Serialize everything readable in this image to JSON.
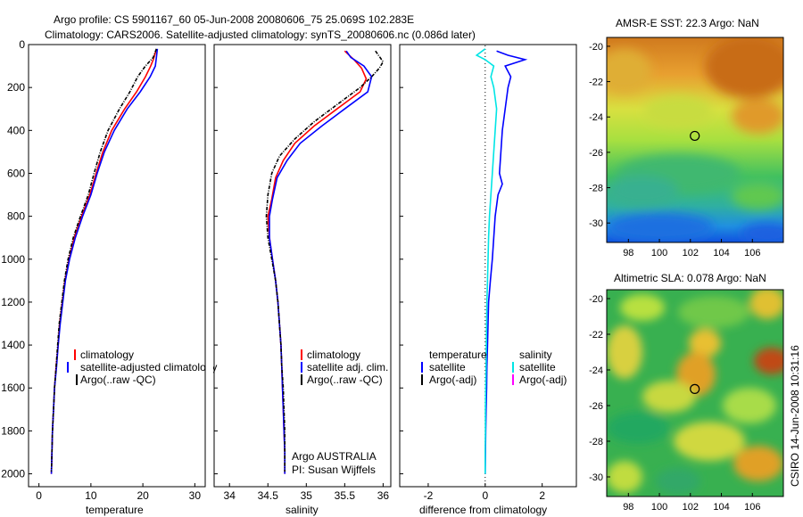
{
  "title_line1": "Argo profile: CS 5901167_60 05-Jun-2008 20080606_75 25.069S 102.283E",
  "title_line2": "Climatology: CARS2006. Satellite-adjusted climatology: synTS_20080606.nc (0.086d later)",
  "side_label": "CSIRO 14-Jun-2008 10:31:16",
  "colors": {
    "climatology": "#ff0000",
    "satellite": "#0000ff",
    "argo": "#000000",
    "satellite_salinity": "#00e5e5",
    "argo_adj_salinity": "#ff00ff"
  },
  "chart_data": [
    {
      "type": "line",
      "panel": "temperature",
      "xlabel": "temperature",
      "ylabel": "",
      "xlim": [
        -2,
        32
      ],
      "ylim": [
        2060,
        0
      ],
      "y_inverted": true,
      "xticks": [
        "0",
        "10",
        "20",
        "30"
      ],
      "yticks": [
        "0",
        "200",
        "400",
        "600",
        "800",
        "1000",
        "1200",
        "1400",
        "1600",
        "1800",
        "2000"
      ],
      "legend": [
        "climatology",
        "satellite-adjusted climatology",
        "Argo(..raw -QC)"
      ],
      "series": [
        {
          "name": "climatology",
          "color": "#ff0000",
          "points": [
            [
              22.5,
              30
            ],
            [
              22.0,
              70
            ],
            [
              21.5,
              100
            ],
            [
              20.5,
              150
            ],
            [
              18.8,
              220
            ],
            [
              16.5,
              300
            ],
            [
              14.0,
              400
            ],
            [
              12.3,
              500
            ],
            [
              11.0,
              600
            ],
            [
              9.8,
              700
            ],
            [
              8.2,
              800
            ],
            [
              6.8,
              900
            ],
            [
              5.8,
              1000
            ],
            [
              5.0,
              1100
            ],
            [
              4.5,
              1200
            ],
            [
              4.0,
              1300
            ],
            [
              3.7,
              1400
            ],
            [
              3.3,
              1500
            ],
            [
              3.0,
              1600
            ],
            [
              2.8,
              1700
            ],
            [
              2.6,
              1800
            ],
            [
              2.5,
              1900
            ],
            [
              2.4,
              2000
            ]
          ]
        },
        {
          "name": "satellite-adjusted climatology",
          "color": "#0000ff",
          "points": [
            [
              22.8,
              20
            ],
            [
              22.6,
              60
            ],
            [
              22.4,
              100
            ],
            [
              21.4,
              150
            ],
            [
              19.5,
              220
            ],
            [
              17.0,
              300
            ],
            [
              14.5,
              400
            ],
            [
              12.6,
              500
            ],
            [
              11.2,
              600
            ],
            [
              10.0,
              700
            ],
            [
              8.4,
              800
            ],
            [
              7.0,
              900
            ],
            [
              5.9,
              1000
            ],
            [
              5.1,
              1100
            ],
            [
              4.6,
              1200
            ],
            [
              4.1,
              1300
            ],
            [
              3.7,
              1400
            ],
            [
              3.4,
              1500
            ],
            [
              3.0,
              1600
            ],
            [
              2.8,
              1700
            ],
            [
              2.6,
              1800
            ],
            [
              2.5,
              1900
            ],
            [
              2.4,
              2000
            ]
          ]
        },
        {
          "name": "Argo(..raw -QC)",
          "color": "#000000",
          "points": [
            [
              22.6,
              20
            ],
            [
              22.0,
              60
            ],
            [
              20.5,
              100
            ],
            [
              19.0,
              150
            ],
            [
              17.5,
              220
            ],
            [
              15.5,
              300
            ],
            [
              13.3,
              400
            ],
            [
              11.8,
              500
            ],
            [
              10.6,
              600
            ],
            [
              9.5,
              700
            ],
            [
              8.0,
              800
            ],
            [
              6.6,
              900
            ],
            [
              5.6,
              1000
            ],
            [
              4.9,
              1100
            ],
            [
              4.4,
              1200
            ],
            [
              3.9,
              1300
            ],
            [
              3.6,
              1400
            ],
            [
              3.3,
              1500
            ],
            [
              3.0,
              1600
            ],
            [
              2.8,
              1700
            ],
            [
              2.6,
              1800
            ],
            [
              2.5,
              1900
            ],
            [
              2.4,
              1990
            ]
          ]
        }
      ]
    },
    {
      "type": "line",
      "panel": "salinity",
      "xlabel": "salinity",
      "ylabel": "",
      "xlim": [
        33.8,
        36.1
      ],
      "ylim": [
        2060,
        0
      ],
      "y_inverted": true,
      "xticks": [
        "34",
        "34.5",
        "35",
        "35.5",
        "36"
      ],
      "legend": [
        "climatology",
        "satellite adj. clim.",
        "Argo(..raw -QC)"
      ],
      "annotations": [
        "Argo AUSTRALIA",
        "PI: Susan Wijffels"
      ],
      "series": [
        {
          "name": "climatology",
          "color": "#ff0000",
          "points": [
            [
              35.5,
              30
            ],
            [
              35.62,
              70
            ],
            [
              35.72,
              110
            ],
            [
              35.78,
              160
            ],
            [
              35.7,
              220
            ],
            [
              35.4,
              300
            ],
            [
              35.1,
              380
            ],
            [
              34.85,
              460
            ],
            [
              34.7,
              540
            ],
            [
              34.6,
              620
            ],
            [
              34.55,
              720
            ],
            [
              34.5,
              800
            ],
            [
              34.52,
              900
            ],
            [
              34.56,
              1000
            ],
            [
              34.6,
              1100
            ],
            [
              34.63,
              1200
            ],
            [
              34.65,
              1300
            ],
            [
              34.67,
              1400
            ],
            [
              34.68,
              1500
            ],
            [
              34.69,
              1600
            ],
            [
              34.7,
              1700
            ],
            [
              34.71,
              1800
            ],
            [
              34.72,
              1900
            ],
            [
              34.72,
              2000
            ]
          ]
        },
        {
          "name": "satellite adj. clim.",
          "color": "#0000ff",
          "points": [
            [
              35.52,
              30
            ],
            [
              35.58,
              60
            ],
            [
              35.75,
              100
            ],
            [
              35.85,
              150
            ],
            [
              35.8,
              220
            ],
            [
              35.5,
              300
            ],
            [
              35.2,
              380
            ],
            [
              34.92,
              460
            ],
            [
              34.75,
              540
            ],
            [
              34.62,
              620
            ],
            [
              34.56,
              720
            ],
            [
              34.52,
              800
            ],
            [
              34.52,
              900
            ],
            [
              34.56,
              1000
            ],
            [
              34.6,
              1100
            ],
            [
              34.63,
              1200
            ],
            [
              34.65,
              1300
            ],
            [
              34.67,
              1400
            ],
            [
              34.68,
              1500
            ],
            [
              34.69,
              1600
            ],
            [
              34.7,
              1700
            ],
            [
              34.71,
              1800
            ],
            [
              34.72,
              1900
            ],
            [
              34.72,
              2000
            ]
          ]
        },
        {
          "name": "Argo(..raw -QC)",
          "color": "#000000",
          "points": [
            [
              35.9,
              30
            ],
            [
              36.0,
              80
            ],
            [
              35.95,
              110
            ],
            [
              35.85,
              150
            ],
            [
              35.7,
              200
            ],
            [
              35.4,
              280
            ],
            [
              35.1,
              360
            ],
            [
              34.85,
              440
            ],
            [
              34.65,
              520
            ],
            [
              34.55,
              600
            ],
            [
              34.5,
              700
            ],
            [
              34.48,
              800
            ],
            [
              34.5,
              900
            ],
            [
              34.55,
              1000
            ],
            [
              34.6,
              1100
            ],
            [
              34.63,
              1200
            ],
            [
              34.65,
              1300
            ],
            [
              34.67,
              1400
            ],
            [
              34.68,
              1500
            ],
            [
              34.7,
              1600
            ],
            [
              34.71,
              1700
            ],
            [
              34.72,
              1800
            ],
            [
              34.72,
              1900
            ],
            [
              34.72,
              1990
            ]
          ]
        }
      ]
    },
    {
      "type": "line",
      "panel": "difference",
      "xlabel": "difference from climatology",
      "ylabel": "",
      "xlim": [
        -3,
        3.2
      ],
      "ylim": [
        2060,
        0
      ],
      "y_inverted": true,
      "xticks": [
        "-2",
        "0",
        "2"
      ],
      "legend_groups": [
        {
          "heading": "temperature",
          "items": [
            "satellite",
            "Argo(-adj)"
          ]
        },
        {
          "heading": "salinity",
          "items": [
            "satellite",
            "Argo(-adj)"
          ]
        }
      ],
      "series": [
        {
          "name": "temperature satellite",
          "color": "#0000ff",
          "points": [
            [
              0.4,
              30
            ],
            [
              0.8,
              50
            ],
            [
              1.4,
              70
            ],
            [
              0.7,
              100
            ],
            [
              0.9,
              150
            ],
            [
              0.8,
              200
            ],
            [
              0.7,
              300
            ],
            [
              0.6,
              400
            ],
            [
              0.55,
              500
            ],
            [
              0.5,
              600
            ],
            [
              0.6,
              650
            ],
            [
              0.45,
              700
            ],
            [
              0.4,
              750
            ],
            [
              0.35,
              800
            ],
            [
              0.3,
              900
            ],
            [
              0.25,
              1000
            ],
            [
              0.18,
              1100
            ],
            [
              0.12,
              1200
            ],
            [
              0.1,
              1300
            ],
            [
              0.08,
              1400
            ],
            [
              0.06,
              1500
            ],
            [
              0.05,
              1600
            ],
            [
              0.03,
              1700
            ],
            [
              0.02,
              1800
            ],
            [
              0.01,
              1900
            ],
            [
              0.0,
              2000
            ]
          ]
        },
        {
          "name": "salinity satellite",
          "color": "#00e5e5",
          "points": [
            [
              0.0,
              20
            ],
            [
              -0.3,
              50
            ],
            [
              0.0,
              70
            ],
            [
              0.3,
              100
            ],
            [
              0.2,
              150
            ],
            [
              0.3,
              200
            ],
            [
              0.4,
              300
            ],
            [
              0.35,
              400
            ],
            [
              0.3,
              500
            ],
            [
              0.25,
              600
            ],
            [
              0.2,
              700
            ],
            [
              0.15,
              800
            ],
            [
              0.12,
              900
            ],
            [
              0.1,
              1000
            ],
            [
              0.08,
              1100
            ],
            [
              0.06,
              1200
            ],
            [
              0.05,
              1300
            ],
            [
              0.04,
              1400
            ],
            [
              0.03,
              1500
            ],
            [
              0.02,
              1600
            ],
            [
              0.01,
              1700
            ],
            [
              0.01,
              1800
            ],
            [
              0.0,
              1900
            ],
            [
              0.0,
              2000
            ]
          ]
        }
      ]
    },
    {
      "type": "heatmap",
      "panel": "amsr-sst",
      "title": "AMSR-E SST: 22.3  Argo: NaN",
      "xlim": [
        96.6,
        108
      ],
      "ylim": [
        -31.1,
        -19.5
      ],
      "xticks": [
        "98",
        "100",
        "102",
        "104",
        "106"
      ],
      "yticks": [
        "-20",
        "-22",
        "-24",
        "-26",
        "-28",
        "-30"
      ],
      "marker": {
        "lon": 102.283,
        "lat": -25.069
      }
    },
    {
      "type": "heatmap",
      "panel": "altimetric-sla",
      "title": "Altimetric SLA: 0.078  Argo: NaN",
      "xlim": [
        96.6,
        108
      ],
      "ylim": [
        -31.1,
        -19.5
      ],
      "xticks": [
        "98",
        "100",
        "102",
        "104",
        "106"
      ],
      "yticks": [
        "-20",
        "-22",
        "-24",
        "-26",
        "-28",
        "-30"
      ],
      "marker": {
        "lon": 102.283,
        "lat": -25.069
      }
    }
  ]
}
